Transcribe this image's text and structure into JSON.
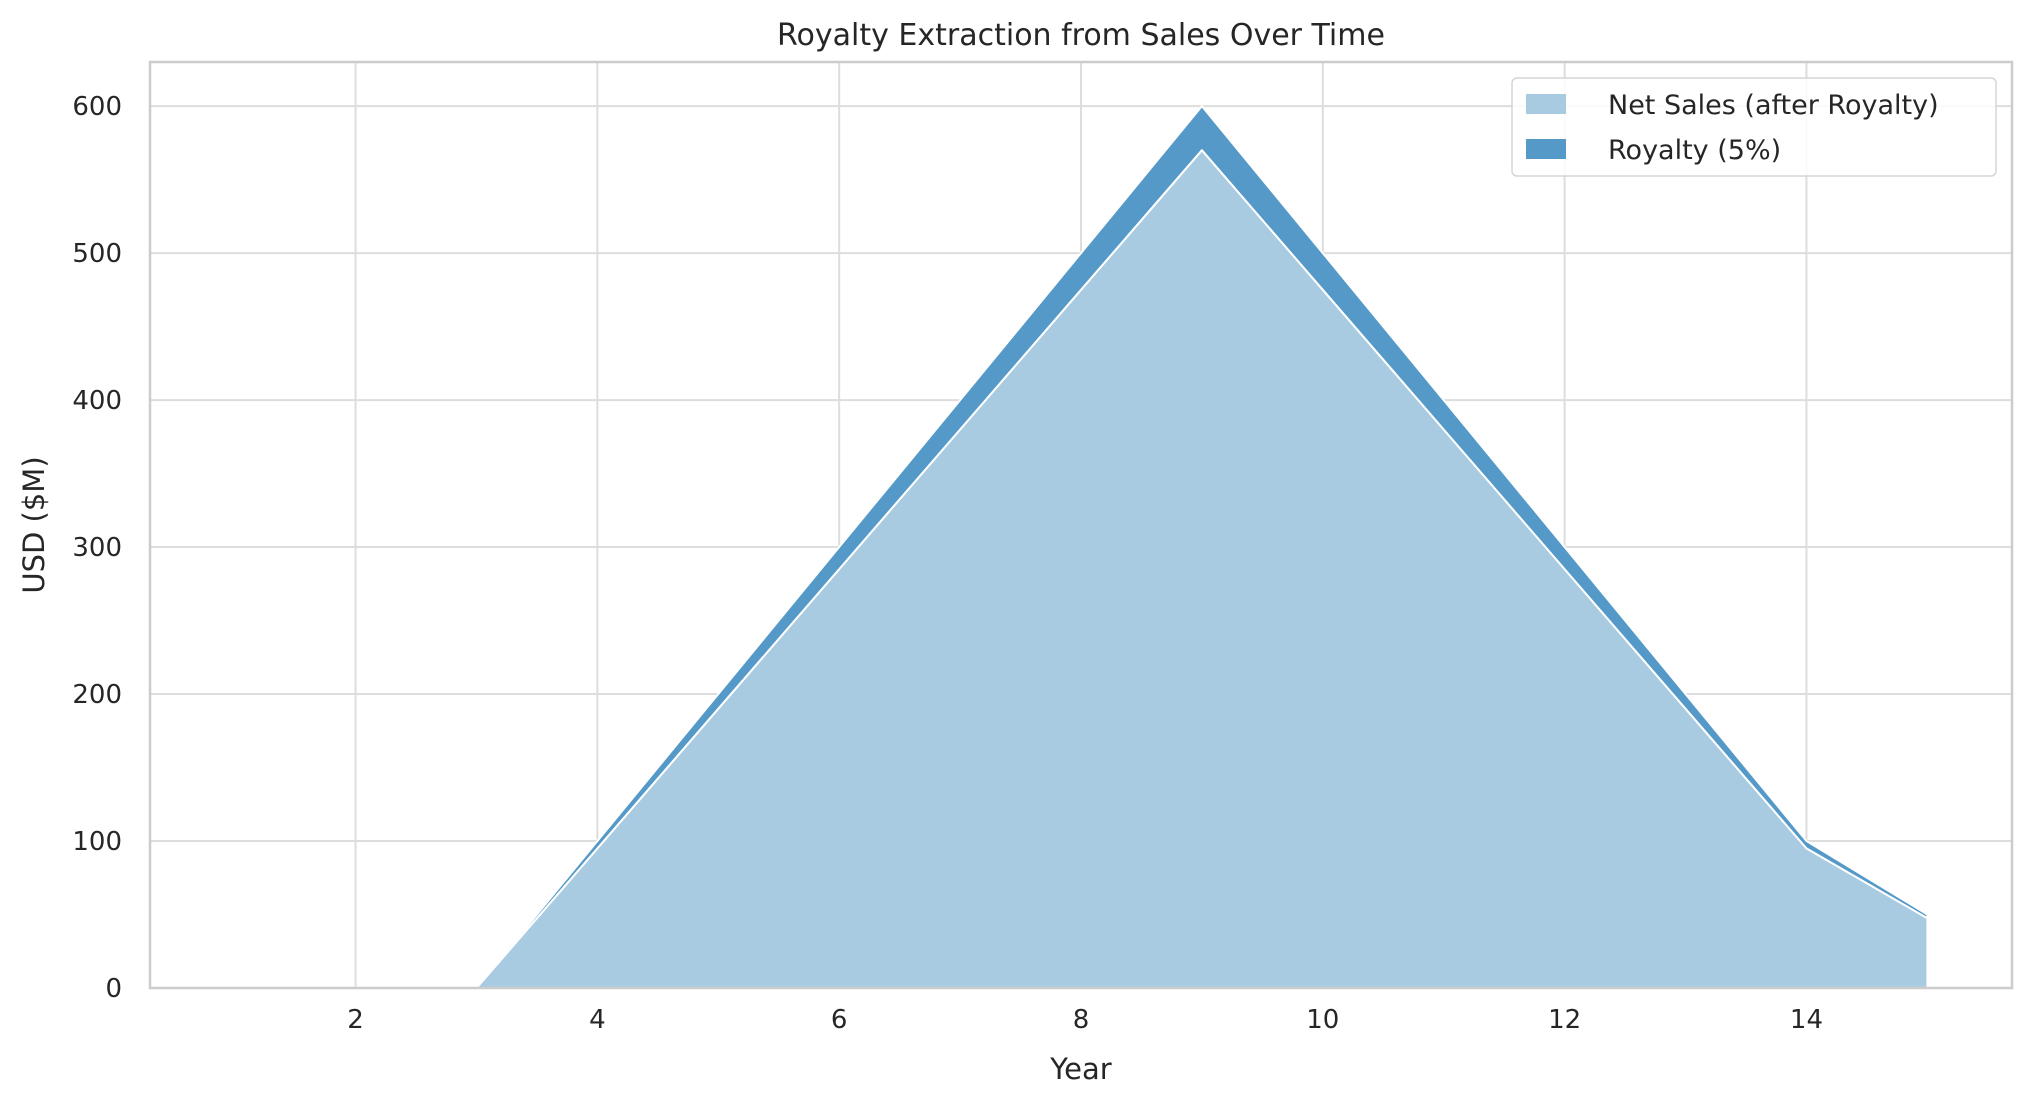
{
  "chart_data": {
    "type": "area",
    "stacked": true,
    "title": "Royalty Extraction from Sales Over Time",
    "xlabel": "Year",
    "ylabel": "USD ($M)",
    "xlim": [
      0.3,
      15.7
    ],
    "ylim": [
      0,
      630
    ],
    "xticks": [
      2,
      4,
      6,
      8,
      10,
      12,
      14
    ],
    "yticks": [
      0,
      100,
      200,
      300,
      400,
      500,
      600
    ],
    "grid": true,
    "legend_position": "top-right",
    "x": [
      1,
      2,
      3,
      4,
      5,
      6,
      7,
      8,
      9,
      10,
      11,
      12,
      13,
      14,
      15
    ],
    "series": [
      {
        "name": "Net Sales (after Royalty)",
        "color": "#a9cbe1",
        "values": [
          0,
          0,
          0,
          95,
          190,
          285,
          380,
          475,
          570,
          475,
          380,
          285,
          190,
          95,
          47.5
        ]
      },
      {
        "name": "Royalty (5%)",
        "color": "#5499c7",
        "values": [
          0,
          0,
          0,
          5,
          10,
          15,
          20,
          25,
          30,
          25,
          20,
          15,
          10,
          5,
          2.5
        ]
      }
    ]
  }
}
